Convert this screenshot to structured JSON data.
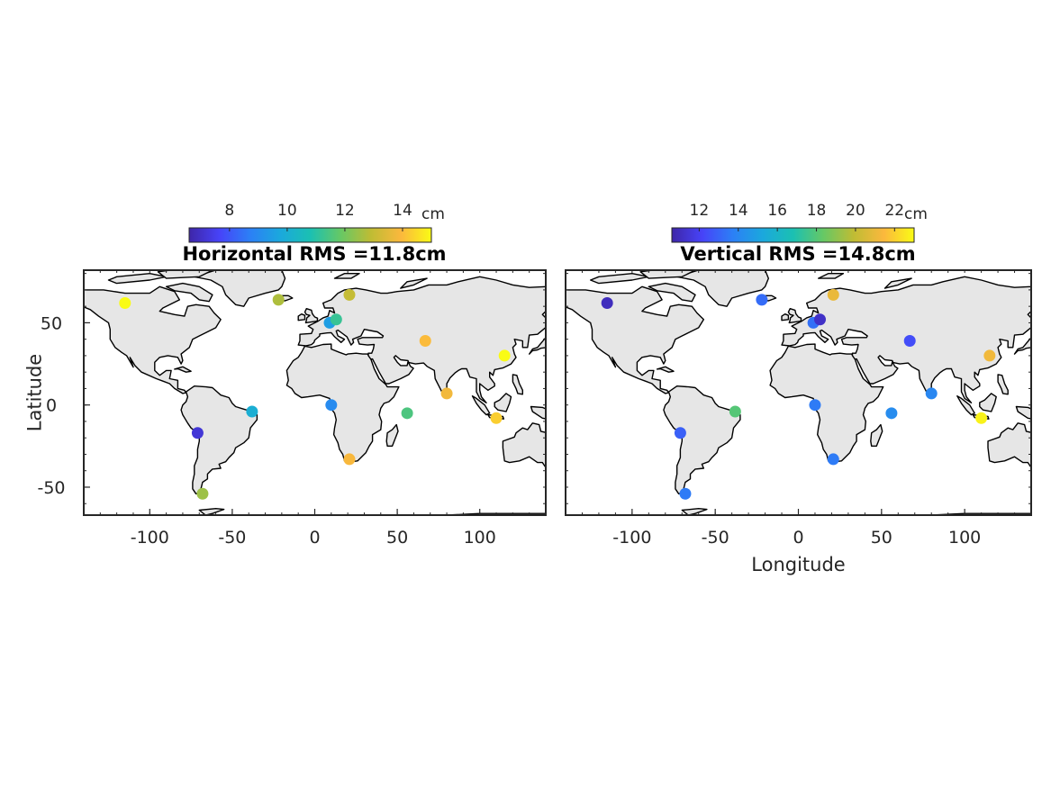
{
  "chart_data": [
    {
      "type": "scatter",
      "title": "Horizontal RMS =11.8cm",
      "xlabel": "",
      "ylabel": "Latitude",
      "xlim": [
        -140,
        140
      ],
      "ylim": [
        -67,
        82
      ],
      "xticks": [
        -100,
        -50,
        0,
        50,
        100
      ],
      "yticks": [
        -50,
        0,
        50
      ],
      "colorbar": {
        "label": "cm",
        "range": [
          6.6,
          15.0
        ],
        "ticks": [
          8,
          10,
          12,
          14
        ],
        "colormap": "parula"
      },
      "points": [
        {
          "lon": -115,
          "lat": 62,
          "value": 15.0
        },
        {
          "lon": -22,
          "lat": 64,
          "value": 12.7
        },
        {
          "lon": 21,
          "lat": 67,
          "value": 13.0
        },
        {
          "lon": 9,
          "lat": 50,
          "value": 9.5
        },
        {
          "lon": 13,
          "lat": 52,
          "value": 11.2
        },
        {
          "lon": 67,
          "lat": 39,
          "value": 14.0
        },
        {
          "lon": 115,
          "lat": 30,
          "value": 15.0
        },
        {
          "lon": 80,
          "lat": 7,
          "value": 13.8
        },
        {
          "lon": 10,
          "lat": 0,
          "value": 9.0
        },
        {
          "lon": -38,
          "lat": -4,
          "value": 10.0
        },
        {
          "lon": 56,
          "lat": -5,
          "value": 11.5
        },
        {
          "lon": 110,
          "lat": -8,
          "value": 14.3
        },
        {
          "lon": -71,
          "lat": -17,
          "value": 7.2
        },
        {
          "lon": 21,
          "lat": -33,
          "value": 13.9
        },
        {
          "lon": -68,
          "lat": -54,
          "value": 12.5
        }
      ]
    },
    {
      "type": "scatter",
      "title": "Vertical RMS =14.8cm",
      "xlabel": "Longitude",
      "ylabel": "",
      "xlim": [
        -140,
        140
      ],
      "ylim": [
        -67,
        82
      ],
      "xticks": [
        -100,
        -50,
        0,
        50,
        100
      ],
      "yticks": [
        -50,
        0,
        50
      ],
      "colorbar": {
        "label": "cm",
        "range": [
          10.6,
          23.0
        ],
        "ticks": [
          12,
          14,
          16,
          18,
          20,
          22
        ],
        "colormap": "parula"
      },
      "points": [
        {
          "lon": -115,
          "lat": 62,
          "value": 11.0
        },
        {
          "lon": -22,
          "lat": 64,
          "value": 13.2
        },
        {
          "lon": 21,
          "lat": 67,
          "value": 21.0
        },
        {
          "lon": 9,
          "lat": 50,
          "value": 13.3
        },
        {
          "lon": 13,
          "lat": 52,
          "value": 11.2
        },
        {
          "lon": 67,
          "lat": 39,
          "value": 12.4
        },
        {
          "lon": 115,
          "lat": 30,
          "value": 21.2
        },
        {
          "lon": 80,
          "lat": 7,
          "value": 14.0
        },
        {
          "lon": 10,
          "lat": 0,
          "value": 13.6
        },
        {
          "lon": -38,
          "lat": -4,
          "value": 18.0
        },
        {
          "lon": 56,
          "lat": -5,
          "value": 14.2
        },
        {
          "lon": 110,
          "lat": -8,
          "value": 22.8
        },
        {
          "lon": -71,
          "lat": -17,
          "value": 12.9
        },
        {
          "lon": 21,
          "lat": -33,
          "value": 13.6
        },
        {
          "lon": -68,
          "lat": -54,
          "value": 13.6
        }
      ]
    }
  ]
}
